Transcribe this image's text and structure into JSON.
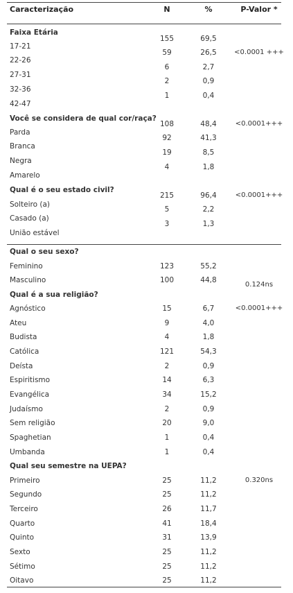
{
  "columns": {
    "caracterizacao": "Caracterização",
    "n": "N",
    "pct": "%",
    "pvalor": "P-Valor *"
  },
  "sections": [
    {
      "title": "Faixa Etária",
      "pvalue": "<0.0001 +++",
      "rows": [
        {
          "label": "17-21",
          "n": "155",
          "pct": "69,5"
        },
        {
          "label": "22-26",
          "n": "59",
          "pct": "26,5"
        },
        {
          "label": "27-31",
          "n": "6",
          "pct": "2,7"
        },
        {
          "label": "32-36",
          "n": "2",
          "pct": "0,9"
        },
        {
          "label": "42-47",
          "n": "1",
          "pct": "0,4"
        }
      ]
    },
    {
      "title": "Você se considera de qual cor/raça?",
      "pvalue": "<0.0001+++",
      "rows": [
        {
          "label": "Parda",
          "n": "108",
          "pct": "48,4"
        },
        {
          "label": "Branca",
          "n": "92",
          "pct": "41,3"
        },
        {
          "label": "Negra",
          "n": "19",
          "pct": "8,5"
        },
        {
          "label": "Amarelo",
          "n": "4",
          "pct": "1,8"
        }
      ]
    },
    {
      "title": "Qual é o seu estado civil?",
      "pvalue": "<0.0001+++",
      "rows": [
        {
          "label": "Solteiro (a)",
          "n": "215",
          "pct": "96,4"
        },
        {
          "label": "Casado (a)",
          "n": "5",
          "pct": "2,2"
        },
        {
          "label": "União estável",
          "n": "3",
          "pct": "1,3"
        }
      ]
    },
    {
      "title": "Qual o seu sexo?",
      "pvalue": "0.124ns",
      "rows": [
        {
          "label": "Feminino",
          "n": "123",
          "pct": "55,2"
        },
        {
          "label": "Masculino",
          "n": "100",
          "pct": "44,8"
        }
      ]
    },
    {
      "title": "Qual é a sua religião?",
      "pvalue": "<0.0001+++",
      "rows": [
        {
          "label": "Agnóstico",
          "n": "15",
          "pct": "6,7"
        },
        {
          "label": "Ateu",
          "n": "9",
          "pct": "4,0"
        },
        {
          "label": "Budista",
          "n": "4",
          "pct": "1,8"
        },
        {
          "label": "Católica",
          "n": "121",
          "pct": "54,3"
        },
        {
          "label": "Deísta",
          "n": "2",
          "pct": "0,9"
        },
        {
          "label": "Espiritismo",
          "n": "14",
          "pct": "6,3"
        },
        {
          "label": "Evangélica",
          "n": "34",
          "pct": "15,2"
        },
        {
          "label": "Judaísmo",
          "n": "2",
          "pct": "0,9"
        },
        {
          "label": "Sem religião",
          "n": "20",
          "pct": "9,0"
        },
        {
          "label": "Spaghetian",
          "n": "1",
          "pct": "0,4"
        },
        {
          "label": "Umbanda",
          "n": "1",
          "pct": "0,4"
        }
      ]
    },
    {
      "title": "Qual seu semestre na UEPA?",
      "pvalue": "0.320ns",
      "rows": [
        {
          "label": "Primeiro",
          "n": "25",
          "pct": "11,2"
        },
        {
          "label": "Segundo",
          "n": "25",
          "pct": "11,2"
        },
        {
          "label": "Terceiro",
          "n": "26",
          "pct": "11,7"
        },
        {
          "label": "Quarto",
          "n": "41",
          "pct": "18,4"
        },
        {
          "label": "Quinto",
          "n": "31",
          "pct": "13,9"
        },
        {
          "label": "Sexto",
          "n": "25",
          "pct": "11,2"
        },
        {
          "label": "Sétimo",
          "n": "25",
          "pct": "11,2"
        },
        {
          "label": "Oitavo",
          "n": "25",
          "pct": "11,2"
        }
      ]
    }
  ]
}
